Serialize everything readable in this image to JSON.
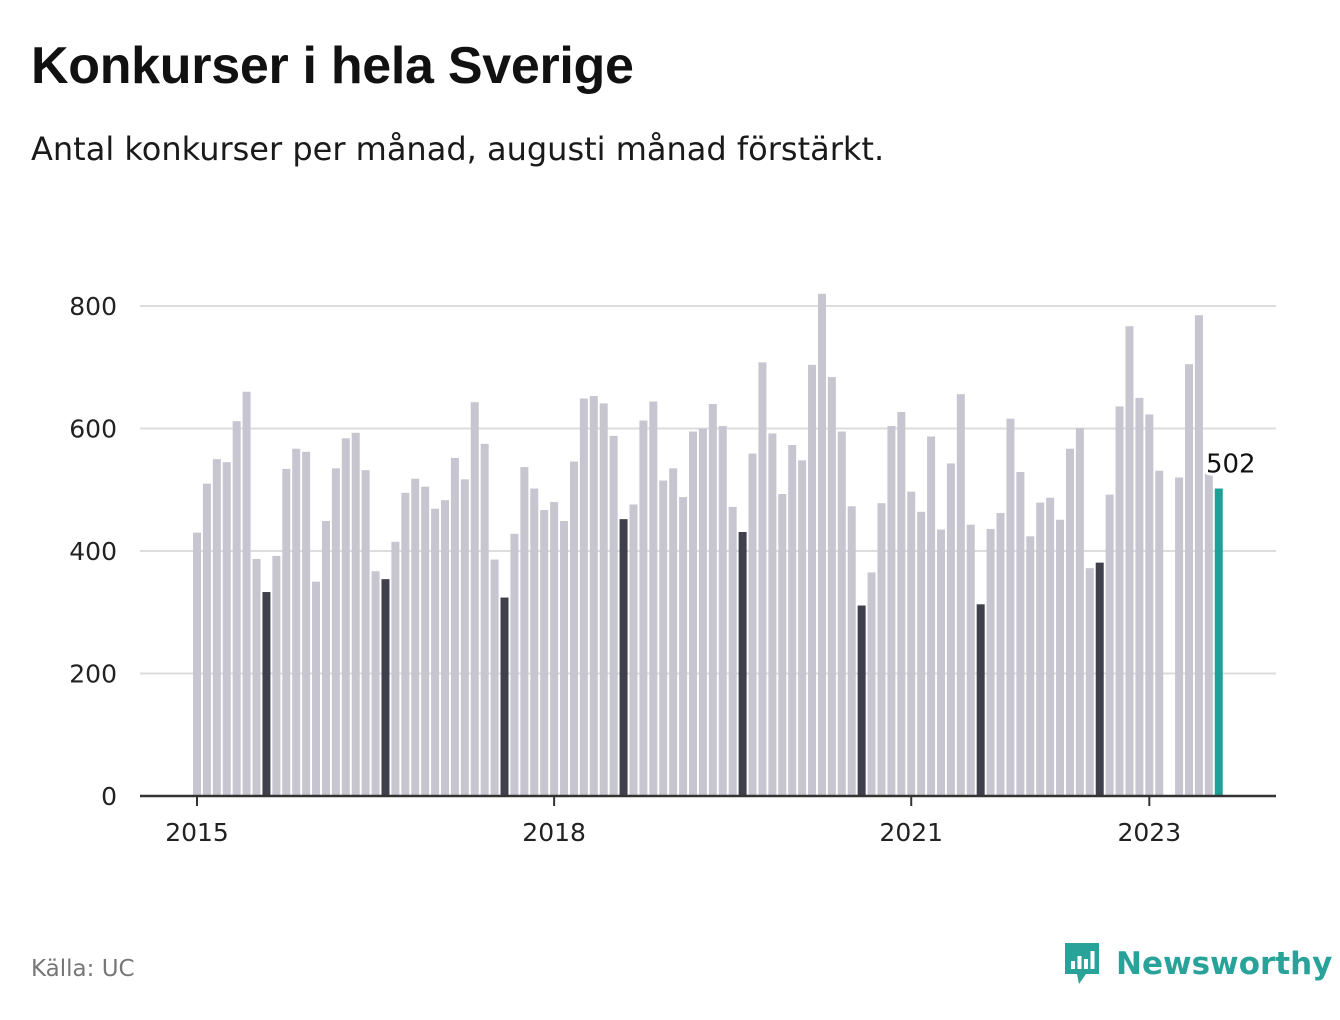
{
  "title": "Konkurser i hela Sverige",
  "subtitle": "Antal konkurser per månad, augusti månad förstärkt.",
  "source": "Källa: UC",
  "brand": {
    "name": "Newsworthy",
    "icon": "newsworthy-logo-icon"
  },
  "colors": {
    "bar": "#c7c6d0",
    "highlight": "#40404c",
    "latest": "#1fa097",
    "grid": "#dddddd",
    "axis": "#333333"
  },
  "chart_data": {
    "type": "bar",
    "title": "Konkurser i hela Sverige",
    "xlabel": "",
    "ylabel": "",
    "ylim": [
      0,
      800
    ],
    "yticks": [
      0,
      200,
      400,
      600,
      800
    ],
    "xticks": [
      {
        "label": "2015",
        "index": 0
      },
      {
        "label": "2018",
        "index": 36
      },
      {
        "label": "2021",
        "index": 72
      },
      {
        "label": "2023",
        "index": 96
      }
    ],
    "start": "2015-01",
    "highlight_month": "augusti",
    "value_label": {
      "text": "502",
      "index": 103
    },
    "values": [
      430,
      510,
      550,
      545,
      612,
      660,
      387,
      333,
      392,
      534,
      567,
      562,
      350,
      449,
      535,
      584,
      593,
      532,
      367,
      354,
      415,
      495,
      518,
      505,
      469,
      483,
      552,
      517,
      643,
      575,
      386,
      324,
      428,
      537,
      502,
      467,
      480,
      449,
      546,
      649,
      653,
      641,
      588,
      452,
      476,
      613,
      644,
      515,
      535,
      488,
      595,
      600,
      640,
      604,
      472,
      431,
      559,
      708,
      592,
      493,
      573,
      548,
      704,
      820,
      684,
      595,
      473,
      311,
      365,
      478,
      604,
      627,
      497,
      464,
      587,
      435,
      543,
      656,
      443,
      313,
      436,
      462,
      616,
      529,
      424,
      479,
      487,
      451,
      567,
      601,
      372,
      381,
      492,
      636,
      767,
      650,
      623,
      531,
      0,
      520,
      705,
      785,
      527,
      502
    ]
  }
}
